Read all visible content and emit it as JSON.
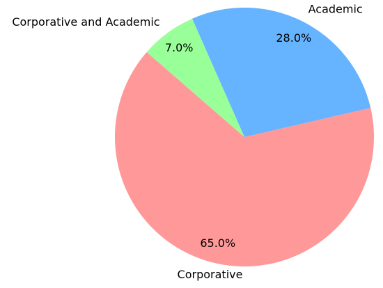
{
  "chart_data": {
    "type": "pie",
    "categories": [
      "Academic",
      "Corporative and Academic",
      "Corporative"
    ],
    "values": [
      28.0,
      7.0,
      65.0
    ],
    "value_labels": [
      "28.0%",
      "7.0%",
      "65.0%"
    ],
    "colors": [
      "#66b3ff",
      "#99ff99",
      "#ff9999"
    ]
  }
}
